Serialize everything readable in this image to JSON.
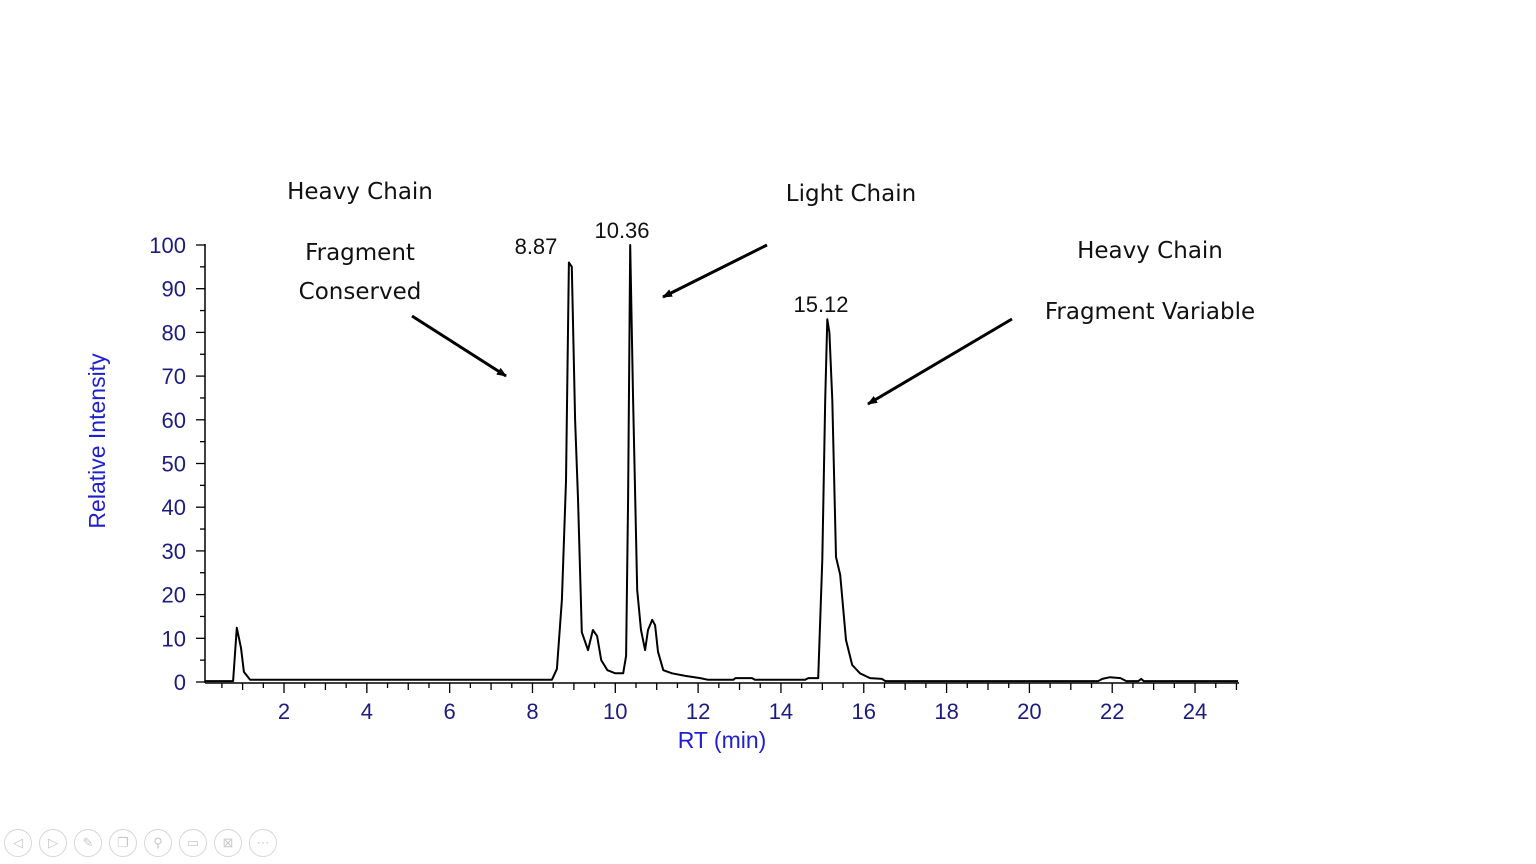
{
  "chart_data": {
    "type": "line",
    "xlabel": "RT (min)",
    "ylabel": "Relative Intensity",
    "xlim": [
      0.1,
      25.05
    ],
    "ylim": [
      0,
      100
    ],
    "xticks": [
      2,
      4,
      6,
      8,
      10,
      12,
      14,
      16,
      18,
      20,
      22,
      24
    ],
    "yticks": [
      0,
      10,
      20,
      30,
      40,
      50,
      60,
      70,
      80,
      90,
      100
    ],
    "grid": false,
    "line_color": "#000000",
    "series": [
      {
        "x": [
          0.1,
          0.77,
          0.86,
          0.96,
          1.03,
          1.18,
          8.47,
          8.59,
          8.71,
          8.81,
          8.88,
          8.95,
          9.03,
          9.1,
          9.19,
          9.34,
          9.46,
          9.56,
          9.66,
          9.81,
          10.0,
          10.19,
          10.26,
          10.31,
          10.36,
          10.43,
          10.53,
          10.62,
          10.72,
          10.79,
          10.89,
          10.96,
          11.03,
          11.16,
          11.37,
          11.69,
          12.05,
          12.24,
          12.85,
          12.9,
          13.3,
          13.37,
          14.58,
          14.66,
          14.9,
          15.0,
          15.07,
          15.12,
          15.17,
          15.24,
          15.33,
          15.43,
          15.57,
          15.72,
          15.91,
          16.15,
          16.44,
          16.52,
          21.66,
          21.76,
          21.95,
          22.2,
          22.34,
          22.63,
          22.7,
          22.76,
          25.04
        ],
        "y": [
          0.2,
          0.2,
          12.4,
          7.8,
          2.3,
          0.5,
          0.5,
          3,
          18.8,
          46,
          96,
          95,
          60,
          42,
          11.4,
          7.3,
          11.9,
          10.5,
          5,
          2.7,
          2,
          2,
          6,
          42,
          100,
          64.5,
          21,
          11.9,
          7.3,
          11.9,
          14.2,
          13,
          6.9,
          2.7,
          2,
          1.4,
          0.9,
          0.5,
          0.5,
          0.9,
          0.9,
          0.5,
          0.5,
          0.9,
          0.9,
          28,
          64.5,
          83,
          80,
          64.5,
          28.6,
          24.5,
          9.6,
          3.9,
          2,
          0.9,
          0.7,
          0.2,
          0.2,
          0.7,
          1.1,
          0.9,
          0.2,
          0.2,
          0.7,
          0.2,
          0.2
        ]
      }
    ],
    "peak_labels": [
      "8.87",
      "10.36",
      "15.12"
    ],
    "annotations": {
      "hc_conserved_line1": "Heavy Chain",
      "hc_conserved_line2": "Fragment",
      "hc_conserved_line3": "Conserved",
      "light_chain": "Light Chain",
      "hc_variable_line1": "Heavy Chain",
      "hc_variable_line2": "Fragment Variable"
    }
  },
  "toolbar": {
    "icons": [
      "previous-icon",
      "next-icon",
      "pen-icon",
      "slides-icon",
      "zoom-icon",
      "subtitles-icon",
      "camera-off-icon",
      "more-icon"
    ],
    "glyphs": [
      "◁",
      "▷",
      "✎",
      "❐",
      "⚲",
      "▭",
      "⊠",
      "⋯"
    ]
  }
}
